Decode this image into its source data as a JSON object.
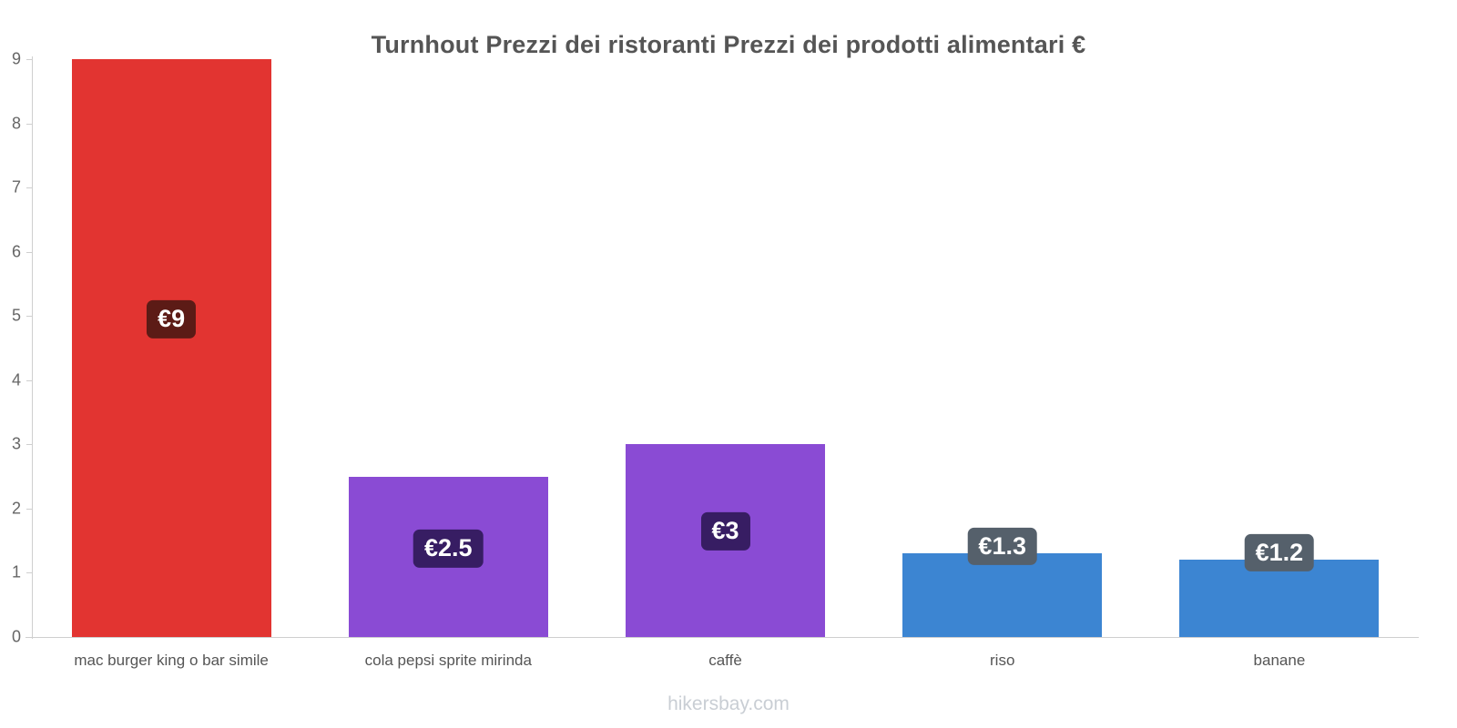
{
  "chart_data": {
    "type": "bar",
    "title": "Turnhout Prezzi dei ristoranti Prezzi dei prodotti alimentari €",
    "categories": [
      "mac burger king o bar simile",
      "cola pepsi sprite mirinda",
      "caffè",
      "riso",
      "banane"
    ],
    "values": [
      9,
      2.5,
      3,
      1.3,
      1.2
    ],
    "value_labels": [
      "€9",
      "€2.5",
      "€3",
      "€1.3",
      "€1.2"
    ],
    "currency": "€",
    "ylim": [
      0,
      9
    ],
    "yticks": [
      0,
      1,
      2,
      3,
      4,
      5,
      6,
      7,
      8,
      9
    ],
    "grid": false,
    "legend": "none",
    "bar_colors": [
      "#e23431",
      "#8a4bd4",
      "#8a4bd4",
      "#3c85d2",
      "#3c85d2"
    ],
    "label_badge_colors": [
      "#5c1b16",
      "#371d63",
      "#371d63",
      "#55606b",
      "#55606b"
    ],
    "axis_color": "#cfcfcf",
    "tick_label_color": "#666666",
    "category_label_color": "#555555",
    "title_color": "#555555"
  },
  "footer": {
    "watermark": "hikersbay.com"
  }
}
